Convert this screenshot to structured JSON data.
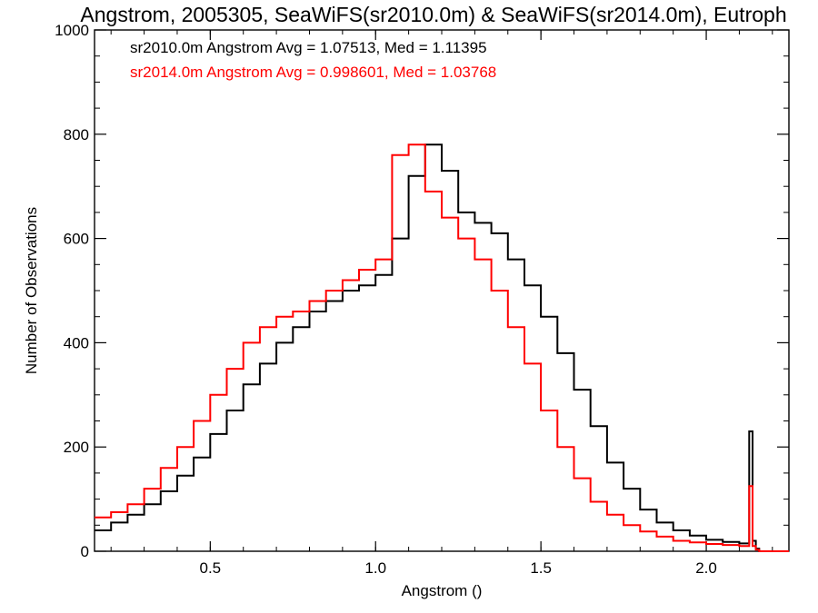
{
  "chart_data": {
    "type": "line",
    "title": "Angstrom, 2005305, SeaWiFS(sr2010.0m) & SeaWiFS(sr2014.0m), Eutroph",
    "xlabel": "Angstrom ()",
    "ylabel": "Number of Observations",
    "xlim": [
      0.15,
      2.25
    ],
    "ylim": [
      0,
      1000
    ],
    "x_ticks": [
      0.5,
      1.0,
      1.5,
      2.0
    ],
    "x_tick_labels": [
      "0.5",
      "1.0",
      "1.5",
      "2.0"
    ],
    "y_ticks": [
      0,
      200,
      400,
      600,
      800,
      1000
    ],
    "y_tick_labels": [
      "0",
      "200",
      "400",
      "600",
      "800",
      "1000"
    ],
    "step": true,
    "grid": false,
    "annotations": [
      {
        "text": "sr2010.0m Angstrom Avg = 1.07513, Med = 1.11395",
        "color": "#000000"
      },
      {
        "text": "sr2014.0m Angstrom Avg = 0.998601, Med = 1.03768",
        "color": "#ff0000"
      }
    ],
    "x": [
      0.15,
      0.2,
      0.25,
      0.3,
      0.35,
      0.4,
      0.45,
      0.5,
      0.55,
      0.6,
      0.65,
      0.7,
      0.75,
      0.8,
      0.85,
      0.9,
      0.95,
      1.0,
      1.05,
      1.1,
      1.15,
      1.2,
      1.25,
      1.3,
      1.35,
      1.4,
      1.45,
      1.5,
      1.55,
      1.6,
      1.65,
      1.7,
      1.75,
      1.8,
      1.85,
      1.9,
      1.95,
      2.0,
      2.05,
      2.1,
      2.13,
      2.14,
      2.15,
      2.16,
      2.2,
      2.25
    ],
    "series": [
      {
        "color": "#000000",
        "values": [
          40,
          55,
          70,
          90,
          115,
          145,
          180,
          225,
          270,
          320,
          360,
          400,
          430,
          460,
          480,
          500,
          510,
          530,
          600,
          720,
          780,
          730,
          650,
          630,
          610,
          560,
          510,
          450,
          380,
          310,
          240,
          170,
          120,
          80,
          55,
          40,
          30,
          22,
          18,
          15,
          230,
          20,
          5,
          0,
          0,
          0
        ]
      },
      {
        "color": "#ff0000",
        "values": [
          65,
          75,
          90,
          120,
          160,
          200,
          250,
          300,
          350,
          400,
          430,
          450,
          460,
          480,
          500,
          520,
          540,
          560,
          760,
          780,
          690,
          640,
          600,
          560,
          500,
          430,
          360,
          270,
          200,
          140,
          95,
          70,
          50,
          38,
          28,
          20,
          17,
          14,
          12,
          10,
          125,
          10,
          3,
          0,
          0,
          0
        ]
      }
    ]
  }
}
